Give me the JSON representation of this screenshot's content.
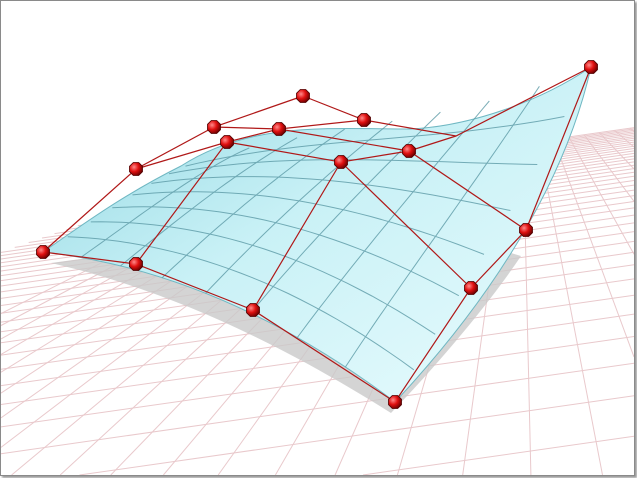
{
  "scene": {
    "subject": "nurbs-surface-with-control-points",
    "colors": {
      "surface_light": "#e6fbfd",
      "surface_dark": "#7fcfdc",
      "surface_grid": "#5c9aa6",
      "control_lattice": "#b01818",
      "control_point": "#e01010",
      "floor_grid": "#e9c9cc",
      "shadow": "#c8c8c8",
      "frame": "#8a8a8a"
    },
    "control_point_count": 15
  }
}
